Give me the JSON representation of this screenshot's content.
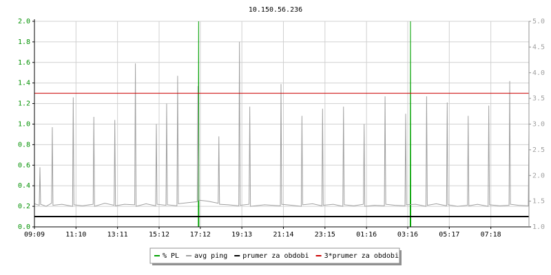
{
  "chart_data": {
    "type": "line",
    "title": "10.150.56.236",
    "xlim": [
      0,
      1440
    ],
    "xticks": [
      {
        "value": 0,
        "label": "09:09"
      },
      {
        "value": 121,
        "label": "11:10"
      },
      {
        "value": 242,
        "label": "13:11"
      },
      {
        "value": 363,
        "label": "15:12"
      },
      {
        "value": 483,
        "label": "17:12"
      },
      {
        "value": 604,
        "label": "19:13"
      },
      {
        "value": 725,
        "label": "21:14"
      },
      {
        "value": 846,
        "label": "23:15"
      },
      {
        "value": 967,
        "label": "01:16"
      },
      {
        "value": 1087,
        "label": "03:16"
      },
      {
        "value": 1208,
        "label": "05:17"
      },
      {
        "value": 1329,
        "label": "07:18"
      }
    ],
    "ylim": [
      0,
      2
    ],
    "yticks": [
      {
        "value": 0,
        "label": "0.0"
      },
      {
        "value": 0.2,
        "label": "0.2"
      },
      {
        "value": 0.4,
        "label": "0.4"
      },
      {
        "value": 0.6,
        "label": "0.6"
      },
      {
        "value": 0.8,
        "label": "0.8"
      },
      {
        "value": 1,
        "label": "1.0"
      },
      {
        "value": 1.2,
        "label": "1.2"
      },
      {
        "value": 1.4,
        "label": "1.4"
      },
      {
        "value": 1.6,
        "label": "1.6"
      },
      {
        "value": 1.8,
        "label": "1.8"
      },
      {
        "value": 2,
        "label": "2.0"
      }
    ],
    "y2lim": [
      1,
      5
    ],
    "y2ticks": [
      {
        "value": 1,
        "label": "1.0"
      },
      {
        "value": 1.5,
        "label": "1.5"
      },
      {
        "value": 2,
        "label": "2.0"
      },
      {
        "value": 2.5,
        "label": "2.5"
      },
      {
        "value": 3,
        "label": "3.0"
      },
      {
        "value": 3.5,
        "label": "3.5"
      },
      {
        "value": 4,
        "label": "4.0"
      },
      {
        "value": 4.5,
        "label": "4.5"
      },
      {
        "value": 5,
        "label": "5.0"
      }
    ],
    "grid": true,
    "legend": "bottom",
    "series": [
      {
        "name": "% PL",
        "color": "#00a000",
        "axis": "y",
        "x": [
          0,
          477,
          478,
          479,
          1094,
          1095,
          1096,
          1440
        ],
        "values": [
          0,
          0,
          2,
          0,
          0,
          2,
          0,
          0
        ]
      },
      {
        "name": "avg ping",
        "color": "#a0a0a0",
        "axis": "y2",
        "x": [
          0,
          14,
          16,
          18,
          34,
          50,
          52,
          54,
          80,
          111,
          113,
          115,
          140,
          171,
          173,
          175,
          205,
          232,
          234,
          236,
          262,
          292,
          294,
          296,
          325,
          353,
          355,
          357,
          383,
          385,
          387,
          415,
          417,
          419,
          445,
          474,
          476,
          478,
          505,
          535,
          537,
          539,
          565,
          595,
          597,
          599,
          625,
          627,
          629,
          670,
          716,
          718,
          720,
          750,
          777,
          779,
          781,
          810,
          837,
          839,
          841,
          870,
          898,
          900,
          902,
          930,
          958,
          960,
          962,
          990,
          1019,
          1021,
          1023,
          1050,
          1079,
          1081,
          1083,
          1110,
          1140,
          1142,
          1144,
          1170,
          1200,
          1202,
          1204,
          1232,
          1261,
          1263,
          1265,
          1290,
          1321,
          1323,
          1325,
          1355,
          1382,
          1384,
          1386,
          1410,
          1438,
          1440
        ],
        "values": [
          1.45,
          1.42,
          2.16,
          1.44,
          1.4,
          1.46,
          2.94,
          1.42,
          1.44,
          1.4,
          3.52,
          1.43,
          1.41,
          1.44,
          3.14,
          1.4,
          1.46,
          1.42,
          3.08,
          1.41,
          1.44,
          1.43,
          4.18,
          1.4,
          1.45,
          1.41,
          3.0,
          1.44,
          1.42,
          3.4,
          1.43,
          1.41,
          3.94,
          1.45,
          1.47,
          1.49,
          3.74,
          1.52,
          1.5,
          1.46,
          2.76,
          1.44,
          1.43,
          1.41,
          4.6,
          1.42,
          1.44,
          3.34,
          1.4,
          1.43,
          1.41,
          3.78,
          1.44,
          1.42,
          1.4,
          3.16,
          1.43,
          1.45,
          1.41,
          3.3,
          1.42,
          1.44,
          1.4,
          3.34,
          1.43,
          1.41,
          1.44,
          3.0,
          1.4,
          1.42,
          1.41,
          3.54,
          1.44,
          1.42,
          1.41,
          3.2,
          1.43,
          1.44,
          1.4,
          3.54,
          1.42,
          1.45,
          1.41,
          3.42,
          1.43,
          1.4,
          1.42,
          3.16,
          1.41,
          1.44,
          1.4,
          3.36,
          1.43,
          1.41,
          1.42,
          3.84,
          1.44,
          1.42,
          1.41,
          2.86
        ]
      },
      {
        "name": "prumer za obdobi",
        "color": "#000000",
        "axis": "y2",
        "x": [
          0,
          1440
        ],
        "values": [
          1.2,
          1.2
        ]
      },
      {
        "name": "3*prumer za obdobi",
        "color": "#cc0000",
        "axis": "y2",
        "x": [
          0,
          1440
        ],
        "values": [
          3.6,
          3.6
        ]
      }
    ]
  }
}
